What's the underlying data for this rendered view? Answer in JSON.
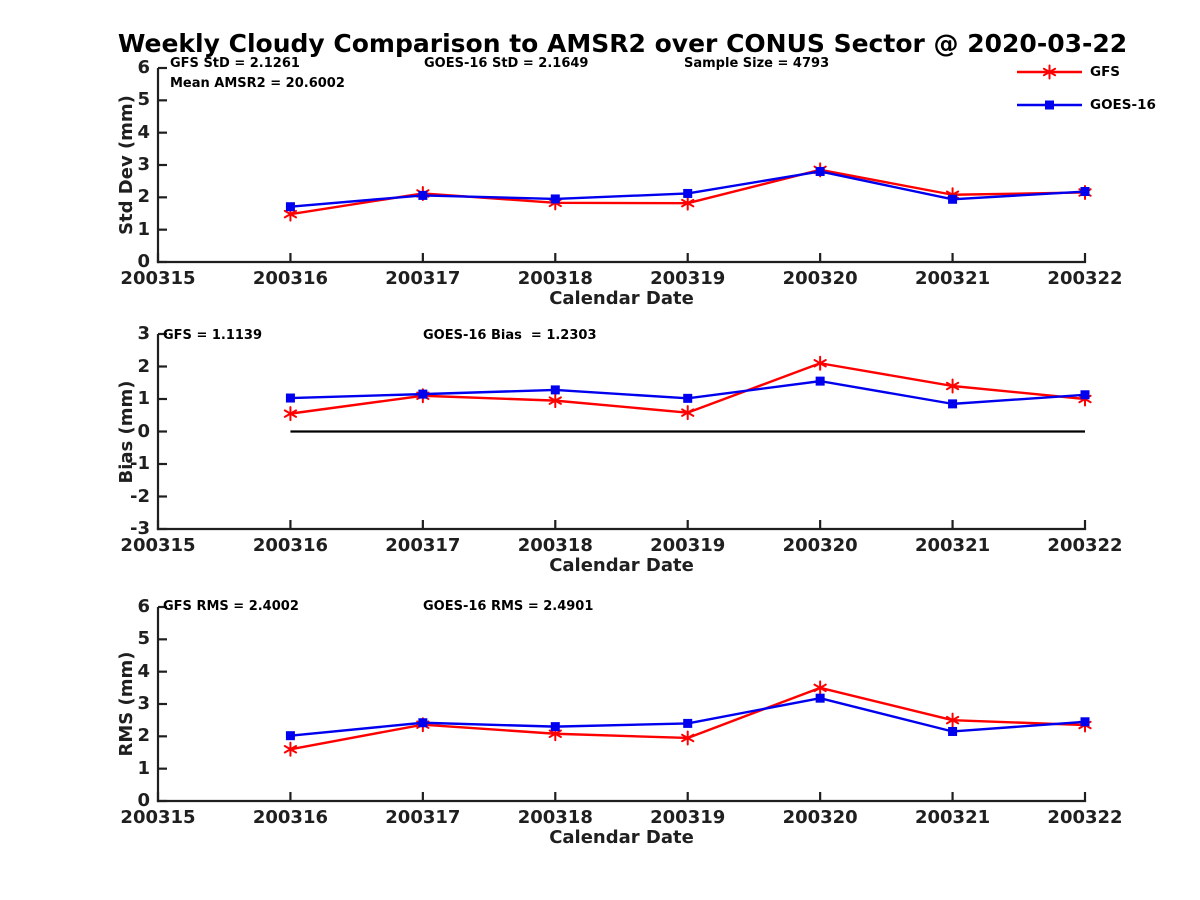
{
  "title": "Weekly Cloudy Comparison to AMSR2 over CONUS Sector @ 2020-03-22",
  "colors": {
    "gfs": "#ff0000",
    "goes16": "#0000ee",
    "axis": "#1f1f1f",
    "zero_line": "#000000",
    "background": "#ffffff"
  },
  "legend": {
    "position": "top-right",
    "entries": [
      {
        "label": "GFS",
        "marker": "asterisk",
        "color": "#ff0000"
      },
      {
        "label": "GOES-16",
        "marker": "square",
        "color": "#0000ee"
      }
    ]
  },
  "chart_data": [
    {
      "type": "line",
      "name": "std-dev",
      "ylabel": "Std Dev (mm)",
      "xlabel": "Calendar Date",
      "categories": [
        "200315",
        "200316",
        "200317",
        "200318",
        "200319",
        "200320",
        "200321",
        "200322"
      ],
      "ylim": [
        0,
        6
      ],
      "yticks": [
        0,
        1,
        2,
        3,
        4,
        5,
        6
      ],
      "grid": false,
      "zero_line": false,
      "annotations": [
        "GFS StD = 2.1261",
        "Mean AMSR2 = 20.6002",
        "GOES-16 StD = 2.1649",
        "Sample Size = 4793"
      ],
      "x": [
        "200316",
        "200317",
        "200318",
        "200319",
        "200320",
        "200321",
        "200322"
      ],
      "series": [
        {
          "name": "GFS",
          "color": "#ff0000",
          "marker": "asterisk",
          "values": [
            1.48,
            2.12,
            1.83,
            1.82,
            2.85,
            2.08,
            2.15
          ]
        },
        {
          "name": "GOES-16",
          "color": "#0000ee",
          "marker": "square",
          "values": [
            1.71,
            2.06,
            1.95,
            2.12,
            2.8,
            1.94,
            2.18
          ]
        }
      ]
    },
    {
      "type": "line",
      "name": "bias",
      "ylabel": "Bias (mm)",
      "xlabel": "Calendar Date",
      "categories": [
        "200315",
        "200316",
        "200317",
        "200318",
        "200319",
        "200320",
        "200321",
        "200322"
      ],
      "ylim": [
        -3,
        3
      ],
      "yticks": [
        -3,
        -2,
        -1,
        0,
        1,
        2,
        3
      ],
      "grid": false,
      "zero_line": true,
      "annotations": [
        "GFS = 1.1139",
        "GOES-16 Bias  = 1.2303"
      ],
      "x": [
        "200316",
        "200317",
        "200318",
        "200319",
        "200320",
        "200321",
        "200322"
      ],
      "series": [
        {
          "name": "GFS",
          "color": "#ff0000",
          "marker": "asterisk",
          "values": [
            0.55,
            1.1,
            0.95,
            0.58,
            2.1,
            1.4,
            1.0
          ]
        },
        {
          "name": "GOES-16",
          "color": "#0000ee",
          "marker": "square",
          "values": [
            1.03,
            1.15,
            1.28,
            1.02,
            1.55,
            0.85,
            1.13
          ]
        }
      ]
    },
    {
      "type": "line",
      "name": "rms",
      "ylabel": "RMS (mm)",
      "xlabel": "Calendar Date",
      "categories": [
        "200315",
        "200316",
        "200317",
        "200318",
        "200319",
        "200320",
        "200321",
        "200322"
      ],
      "ylim": [
        0,
        6
      ],
      "yticks": [
        0,
        1,
        2,
        3,
        4,
        5,
        6
      ],
      "grid": false,
      "zero_line": false,
      "annotations": [
        "GFS RMS = 2.4002",
        "GOES-16 RMS = 2.4901"
      ],
      "x": [
        "200316",
        "200317",
        "200318",
        "200319",
        "200320",
        "200321",
        "200322"
      ],
      "series": [
        {
          "name": "GFS",
          "color": "#ff0000",
          "marker": "asterisk",
          "values": [
            1.6,
            2.36,
            2.08,
            1.95,
            3.5,
            2.5,
            2.35
          ]
        },
        {
          "name": "GOES-16",
          "color": "#0000ee",
          "marker": "square",
          "values": [
            2.02,
            2.42,
            2.3,
            2.4,
            3.18,
            2.15,
            2.45
          ]
        }
      ]
    }
  ]
}
